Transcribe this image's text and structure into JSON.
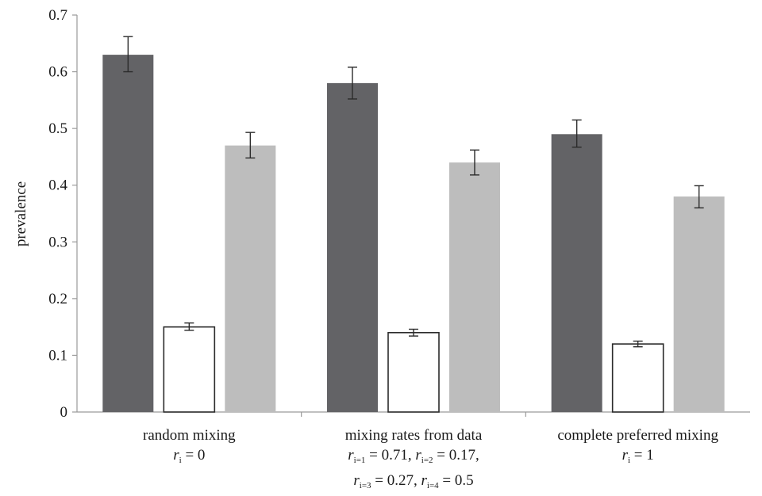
{
  "chart_data": {
    "type": "bar",
    "ylabel": "prevalence",
    "ylim": [
      0,
      0.7
    ],
    "yticks": [
      "0",
      "0.1",
      "0.2",
      "0.3",
      "0.4",
      "0.5",
      "0.6",
      "0.7"
    ],
    "grid": false,
    "legend": "none",
    "categories": [
      {
        "title": "random mixing",
        "formula": [
          [
            {
              "var": "r",
              "sub": "i",
              "rest": " = 0"
            }
          ]
        ]
      },
      {
        "title": "mixing rates from data",
        "formula": [
          [
            {
              "var": "r",
              "sub": "i=1",
              "rest": " = 0.71, "
            },
            {
              "var": "r",
              "sub": "i=2",
              "rest": " = 0.17,"
            }
          ],
          [
            {
              "var": "r",
              "sub": "i=3",
              "rest": " = 0.27, "
            },
            {
              "var": "r",
              "sub": "i=4",
              "rest": " = 0.5"
            }
          ]
        ]
      },
      {
        "title": "complete preferred mixing",
        "formula": [
          [
            {
              "var": "r",
              "sub": "i",
              "rest": " = 1"
            }
          ]
        ]
      }
    ],
    "series": [
      {
        "color": "#636366",
        "fill": true,
        "values": [
          0.63,
          0.58,
          0.49
        ],
        "errors": [
          [
            0.6,
            0.662
          ],
          [
            0.552,
            0.608
          ],
          [
            0.467,
            0.515
          ]
        ]
      },
      {
        "color": "#ffffff",
        "stroke": "#2b2b2b",
        "fill": false,
        "values": [
          0.15,
          0.14,
          0.12
        ],
        "errors": [
          [
            0.144,
            0.157
          ],
          [
            0.134,
            0.146
          ],
          [
            0.115,
            0.125
          ]
        ]
      },
      {
        "color": "#bdbdbd",
        "fill": true,
        "values": [
          0.47,
          0.44,
          0.38
        ],
        "errors": [
          [
            0.448,
            0.493
          ],
          [
            0.418,
            0.462
          ],
          [
            0.36,
            0.399
          ]
        ]
      }
    ]
  }
}
